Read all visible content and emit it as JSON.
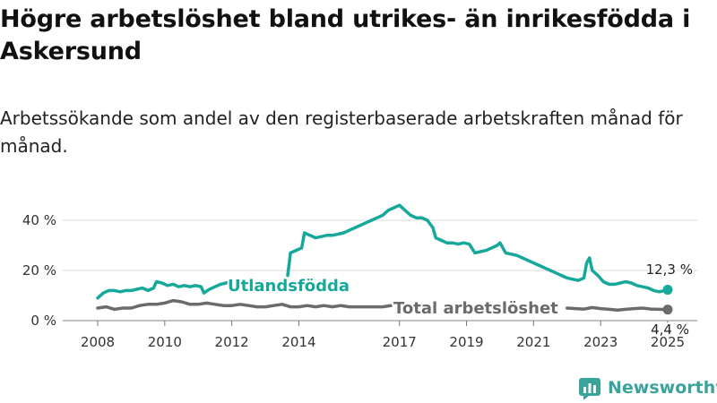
{
  "title": "Högre arbetslöshet bland utrikes- än inrikesfödda i Askersund",
  "subtitle": "Arbetssökande som andel av den registerbaserade arbetskraften månad för månad.",
  "brand": {
    "name": "Newsworthy",
    "icon": "newsworthy-logo-icon",
    "color": "#3aa39b"
  },
  "chart_data": {
    "type": "line",
    "xlabel": "",
    "ylabel": "",
    "y_ticks": [
      0,
      20,
      40
    ],
    "y_tick_labels": [
      "0 %",
      "20 %",
      "40 %"
    ],
    "ylim": [
      0,
      46
    ],
    "x_ticks": [
      2008,
      2010,
      2012,
      2014,
      2017,
      2019,
      2021,
      2023,
      2025
    ],
    "x_tick_labels": [
      "2008",
      "2010",
      "2012",
      "2014",
      "2017",
      "2019",
      "2021",
      "2023",
      "2025"
    ],
    "grid": true,
    "series": [
      {
        "name": "Utlandsfödda",
        "color": "#16a89b",
        "end_label": "12,3 %",
        "points": [
          [
            "2008-01",
            9
          ],
          [
            "2008-03",
            11
          ],
          [
            "2008-05",
            12
          ],
          [
            "2008-07",
            12
          ],
          [
            "2008-09",
            11.5
          ],
          [
            "2008-11",
            12
          ],
          [
            "2009-01",
            12
          ],
          [
            "2009-03",
            12.5
          ],
          [
            "2009-05",
            13
          ],
          [
            "2009-07",
            12
          ],
          [
            "2009-09",
            13
          ],
          [
            "2009-10",
            15.5
          ],
          [
            "2009-12",
            15
          ],
          [
            "2010-02",
            14
          ],
          [
            "2010-04",
            14.5
          ],
          [
            "2010-06",
            13.5
          ],
          [
            "2010-08",
            14
          ],
          [
            "2010-10",
            13.5
          ],
          [
            "2010-12",
            14
          ],
          [
            "2011-02",
            13.5
          ],
          [
            "2011-03",
            11
          ],
          [
            "2011-05",
            12.5
          ],
          [
            "2011-07",
            13.5
          ],
          [
            "2011-09",
            14.5
          ],
          [
            "2011-11",
            15
          ],
          [
            "2012-01",
            16
          ],
          null,
          [
            "2013-09",
            18
          ],
          [
            "2013-10",
            27
          ],
          [
            "2013-12",
            28
          ],
          [
            "2014-02",
            29
          ],
          [
            "2014-03",
            35
          ],
          [
            "2014-05",
            34
          ],
          [
            "2014-07",
            33
          ],
          [
            "2014-09",
            33.5
          ],
          [
            "2014-11",
            34
          ],
          [
            "2015-01",
            34
          ],
          [
            "2015-03",
            34.5
          ],
          [
            "2015-05",
            35
          ],
          [
            "2015-07",
            36
          ],
          [
            "2015-09",
            37
          ],
          [
            "2015-11",
            38
          ],
          [
            "2016-01",
            39
          ],
          [
            "2016-03",
            40
          ],
          [
            "2016-05",
            41
          ],
          [
            "2016-07",
            42
          ],
          [
            "2016-09",
            44
          ],
          [
            "2016-11",
            45
          ],
          [
            "2017-01",
            46
          ],
          [
            "2017-03",
            44
          ],
          [
            "2017-05",
            42
          ],
          [
            "2017-07",
            41
          ],
          [
            "2017-09",
            41
          ],
          [
            "2017-11",
            40
          ],
          [
            "2018-01",
            37
          ],
          [
            "2018-02",
            33
          ],
          [
            "2018-04",
            32
          ],
          [
            "2018-06",
            31
          ],
          [
            "2018-08",
            31
          ],
          [
            "2018-10",
            30.5
          ],
          [
            "2018-12",
            31
          ],
          [
            "2019-02",
            30.5
          ],
          [
            "2019-04",
            27
          ],
          [
            "2019-06",
            27.5
          ],
          [
            "2019-08",
            28
          ],
          [
            "2019-10",
            29
          ],
          [
            "2019-12",
            30
          ],
          [
            "2020-01",
            31
          ],
          [
            "2020-03",
            27
          ],
          [
            "2020-05",
            26.5
          ],
          [
            "2020-07",
            26
          ],
          [
            "2020-09",
            25
          ],
          [
            "2020-11",
            24
          ],
          [
            "2021-01",
            23
          ],
          [
            "2021-03",
            22
          ],
          [
            "2021-05",
            21
          ],
          [
            "2021-07",
            20
          ],
          [
            "2021-09",
            19
          ],
          [
            "2021-11",
            18
          ],
          [
            "2022-01",
            17
          ],
          [
            "2022-03",
            16.5
          ],
          [
            "2022-05",
            16
          ],
          [
            "2022-07",
            17
          ],
          [
            "2022-08",
            23
          ],
          [
            "2022-09",
            25
          ],
          [
            "2022-10",
            20
          ],
          [
            "2022-12",
            18
          ],
          [
            "2023-02",
            15.5
          ],
          [
            "2023-04",
            14.5
          ],
          [
            "2023-06",
            14.5
          ],
          [
            "2023-08",
            15
          ],
          [
            "2023-10",
            15.5
          ],
          [
            "2023-12",
            15
          ],
          [
            "2024-02",
            14
          ],
          [
            "2024-04",
            13.5
          ],
          [
            "2024-06",
            13
          ],
          [
            "2024-08",
            12
          ],
          [
            "2024-10",
            11.5
          ],
          [
            "2024-12",
            12
          ],
          [
            "2025-01",
            12.3
          ]
        ]
      },
      {
        "name": "Total arbetslöshet",
        "color": "#6b6b6b",
        "end_label": "4,4 %",
        "points": [
          [
            "2008-01",
            5
          ],
          [
            "2008-04",
            5.5
          ],
          [
            "2008-07",
            4.5
          ],
          [
            "2008-10",
            5
          ],
          [
            "2009-01",
            5
          ],
          [
            "2009-04",
            6
          ],
          [
            "2009-07",
            6.5
          ],
          [
            "2009-10",
            6.5
          ],
          [
            "2010-01",
            7
          ],
          [
            "2010-04",
            8
          ],
          [
            "2010-07",
            7.5
          ],
          [
            "2010-10",
            6.5
          ],
          [
            "2011-01",
            6.5
          ],
          [
            "2011-04",
            7
          ],
          [
            "2011-07",
            6.5
          ],
          [
            "2011-10",
            6
          ],
          [
            "2012-01",
            6
          ],
          [
            "2012-04",
            6.5
          ],
          [
            "2012-07",
            6
          ],
          [
            "2012-10",
            5.5
          ],
          [
            "2013-01",
            5.5
          ],
          [
            "2013-04",
            6
          ],
          [
            "2013-07",
            6.5
          ],
          [
            "2013-10",
            5.5
          ],
          [
            "2014-01",
            5.5
          ],
          [
            "2014-04",
            6
          ],
          [
            "2014-07",
            5.5
          ],
          [
            "2014-10",
            6
          ],
          [
            "2015-01",
            5.5
          ],
          [
            "2015-04",
            6
          ],
          [
            "2015-07",
            5.5
          ],
          [
            "2015-10",
            5.5
          ],
          [
            "2016-01",
            5.5
          ],
          [
            "2016-04",
            5.5
          ],
          [
            "2016-07",
            5.5
          ],
          [
            "2016-10",
            6
          ],
          null,
          [
            "2022-01",
            5
          ],
          [
            "2022-04",
            4.8
          ],
          [
            "2022-07",
            4.6
          ],
          [
            "2022-10",
            5.2
          ],
          [
            "2023-01",
            4.8
          ],
          [
            "2023-04",
            4.5
          ],
          [
            "2023-07",
            4.2
          ],
          [
            "2023-10",
            4.5
          ],
          [
            "2024-01",
            4.8
          ],
          [
            "2024-04",
            5
          ],
          [
            "2024-07",
            4.6
          ],
          [
            "2024-10",
            4.5
          ],
          [
            "2025-01",
            4.4
          ]
        ]
      }
    ]
  }
}
